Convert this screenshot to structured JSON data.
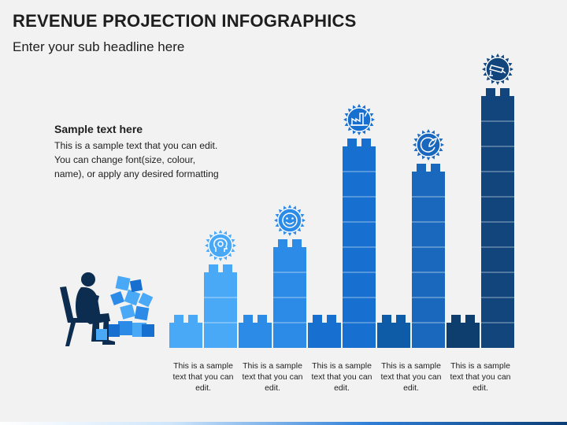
{
  "header": {
    "title": "REVENUE PROJECTION INFOGRAPHICS",
    "subtitle": "Enter your sub headline here"
  },
  "sample_text": {
    "heading": "Sample text here",
    "body": "This is a sample text that you can edit. You can change font(size, colour, name), or apply any desired formatting"
  },
  "colors": {
    "background": "#f2f2f2",
    "steps": [
      "#4aa9f7",
      "#2d8be8",
      "#176fcf",
      "#0e5ba8",
      "#0d3e6e"
    ]
  },
  "steps": [
    {
      "name": "step-1",
      "tower_blocks": 3,
      "base_color": "#4aa9f7",
      "tower_color": "#4aa9f7",
      "icon": "head-gear-icon",
      "caption": "This is a sample text that you can edit."
    },
    {
      "name": "step-2",
      "tower_blocks": 4,
      "base_color": "#2d8be8",
      "tower_color": "#2d8be8",
      "icon": "smiley-face-icon",
      "caption": "This is a sample text that you can edit."
    },
    {
      "name": "step-3",
      "tower_blocks": 8,
      "base_color": "#176fcf",
      "tower_color": "#176fcf",
      "icon": "factory-icon",
      "caption": "This is a sample text that you can edit."
    },
    {
      "name": "step-4",
      "tower_blocks": 7,
      "base_color": "#0e5ba8",
      "tower_color": "#1a68bd",
      "icon": "globe-leaf-icon",
      "caption": "This is a sample text that you can edit."
    },
    {
      "name": "step-5",
      "tower_blocks": 10,
      "base_color": "#0d3e6e",
      "tower_color": "#11457c",
      "icon": "security-camera-icon",
      "caption": "This is a sample text that you can edit."
    }
  ]
}
